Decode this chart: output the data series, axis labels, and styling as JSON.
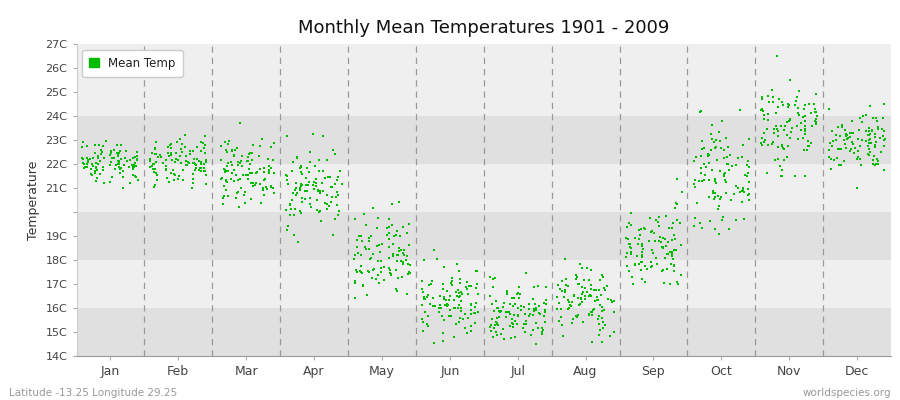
{
  "title": "Monthly Mean Temperatures 1901 - 2009",
  "ylabel": "Temperature",
  "subtitle": "Latitude -13.25 Longitude 29.25",
  "watermark": "worldspecies.org",
  "dot_color": "#00bb00",
  "dot_size": 4,
  "ylim": [
    14,
    27
  ],
  "months": [
    "Jan",
    "Feb",
    "Mar",
    "Apr",
    "May",
    "Jun",
    "Jul",
    "Aug",
    "Sep",
    "Oct",
    "Nov",
    "Dec"
  ],
  "background_color": "#ffffff",
  "band_light": "#efefef",
  "band_dark": "#e0e0e0",
  "n_years": 109,
  "monthly_means": [
    22.1,
    22.0,
    21.7,
    21.0,
    18.0,
    16.2,
    15.8,
    16.3,
    18.5,
    21.5,
    23.6,
    23.0
  ],
  "monthly_stds": [
    0.45,
    0.5,
    0.65,
    0.85,
    0.95,
    0.75,
    0.65,
    0.75,
    0.9,
    1.0,
    1.05,
    0.65
  ],
  "monthly_ranges": [
    [
      21.0,
      23.5
    ],
    [
      20.5,
      23.5
    ],
    [
      20.0,
      24.5
    ],
    [
      18.5,
      23.3
    ],
    [
      15.0,
      22.5
    ],
    [
      14.2,
      18.5
    ],
    [
      13.8,
      17.5
    ],
    [
      14.2,
      18.5
    ],
    [
      17.0,
      23.2
    ],
    [
      19.0,
      25.5
    ],
    [
      21.5,
      26.8
    ],
    [
      21.0,
      24.5
    ]
  ]
}
